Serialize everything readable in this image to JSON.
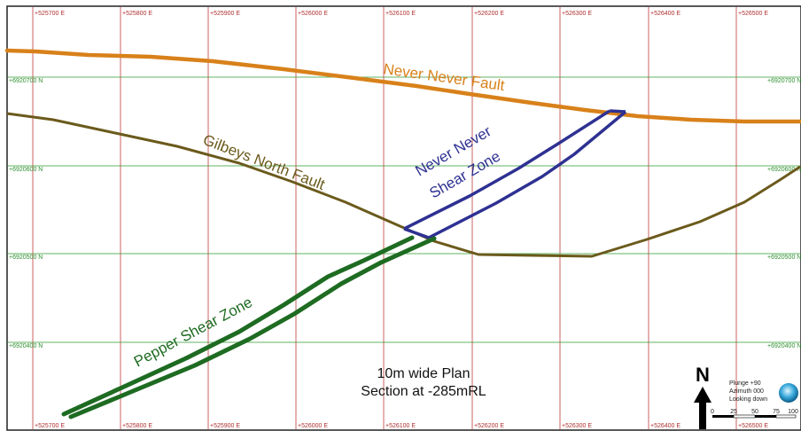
{
  "map": {
    "easting_labels": [
      "+525700 E",
      "+525800 E",
      "+525900 E",
      "+526000 E",
      "+526100 E",
      "+526200 E",
      "+526300 E",
      "+526400 E",
      "+526500 E"
    ],
    "northing_labels": [
      "+6920700 N",
      "+6920600 N",
      "+6920500 N",
      "+6920400 N"
    ],
    "features": {
      "never_never_fault": {
        "label": "Never Never Fault",
        "color": "#e08a1e"
      },
      "gilbeys_north_fault": {
        "label": "Gilbeys North Fault",
        "color": "#6b5a1c"
      },
      "never_never_shear_zone": {
        "label_line1": "Never Never",
        "label_line2": "Shear Zone",
        "color": "#2e3192"
      },
      "pepper_shear_zone": {
        "label": "Pepper Shear Zone",
        "color": "#1e6b22"
      }
    },
    "title_line1": "10m wide Plan",
    "title_line2": "Section at -285mRL",
    "north_arrow": {
      "label": "N"
    },
    "view_info": {
      "plunge": "Plunge +90",
      "azimuth": "Azimuth 000",
      "looking": "Looking down"
    },
    "scale_bar": {
      "ticks": [
        "0",
        "25",
        "50",
        "75",
        "100"
      ]
    }
  }
}
